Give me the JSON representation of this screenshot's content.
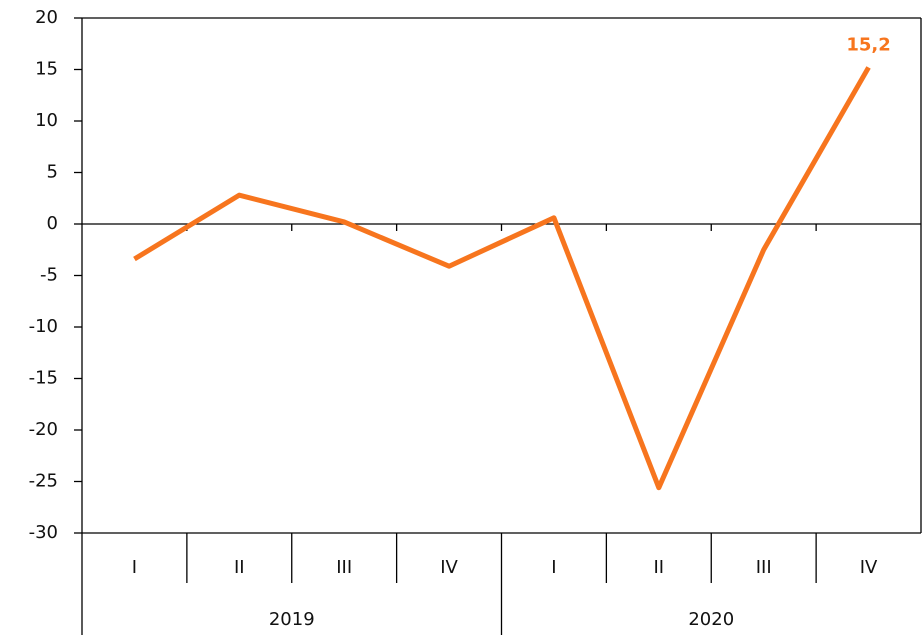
{
  "chart_data": {
    "type": "line",
    "categories": [
      "I",
      "II",
      "III",
      "IV",
      "I",
      "II",
      "III",
      "IV"
    ],
    "groups": [
      "2019",
      "2020"
    ],
    "series": [
      {
        "color": "#f7751e",
        "values": [
          -3.4,
          2.8,
          0.2,
          -4.1,
          0.6,
          -25.6,
          -2.5,
          15.2
        ],
        "value_labels": [
          null,
          null,
          null,
          null,
          null,
          null,
          null,
          "15,2"
        ]
      }
    ],
    "ylim": [
      -30,
      20
    ],
    "yticks": [
      -30,
      -25,
      -20,
      -15,
      -10,
      -5,
      0,
      5,
      10,
      15,
      20
    ],
    "grid": false
  }
}
